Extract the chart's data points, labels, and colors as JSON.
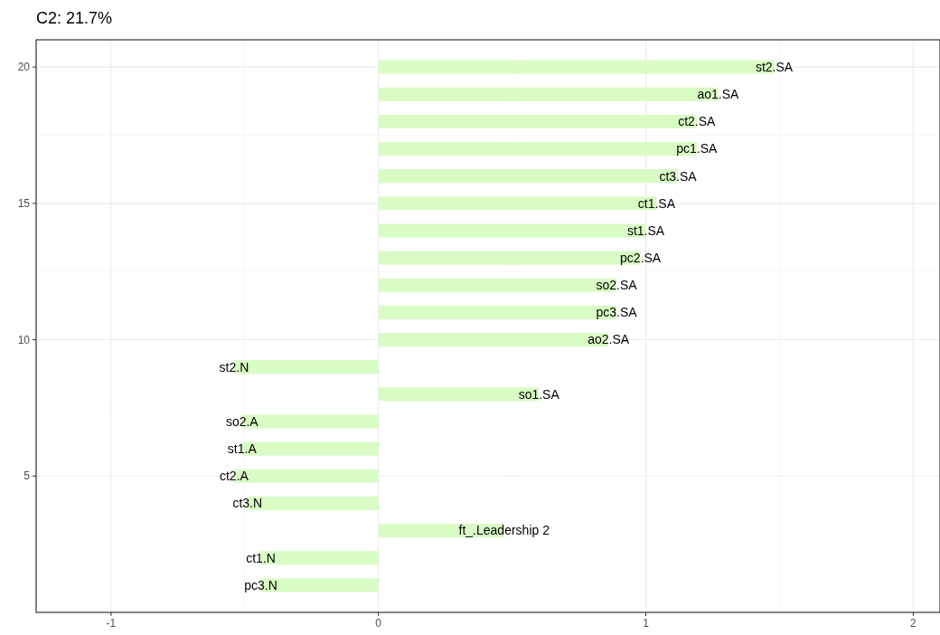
{
  "chart_data": {
    "type": "bar",
    "orientation": "horizontal",
    "title": "C2: 21.7%",
    "x": [
      20,
      19,
      18,
      17,
      16,
      15,
      14,
      13,
      12,
      11,
      10,
      9,
      8,
      7,
      6,
      5,
      4,
      3,
      2,
      1
    ],
    "values": [
      1.48,
      1.27,
      1.19,
      1.19,
      1.12,
      1.04,
      1.0,
      0.98,
      0.89,
      0.89,
      0.86,
      -0.54,
      0.6,
      -0.51,
      -0.51,
      -0.54,
      -0.49,
      0.47,
      -0.44,
      -0.44
    ],
    "value_labels": [
      "st2.SA",
      "ao1.SA",
      "ct2.SA",
      "pc1.SA",
      "ct3.SA",
      "ct1.SA",
      "st1.SA",
      "pc2.SA",
      "so2.SA",
      "pc3.SA",
      "ao2.SA",
      "st2.N",
      "so1.SA",
      "so2.A",
      "st1.A",
      "ct2.A",
      "ct3.N",
      "ft_.Leadership 2",
      "ct1.N",
      "pc3.N"
    ],
    "color": "#d9fcc4",
    "xlim": [
      -1.28,
      2.1
    ],
    "xticks": [
      -1,
      0,
      1,
      2
    ],
    "ylim": [
      0,
      21
    ],
    "yticks": [
      5,
      10,
      15,
      20
    ],
    "grid": true
  }
}
